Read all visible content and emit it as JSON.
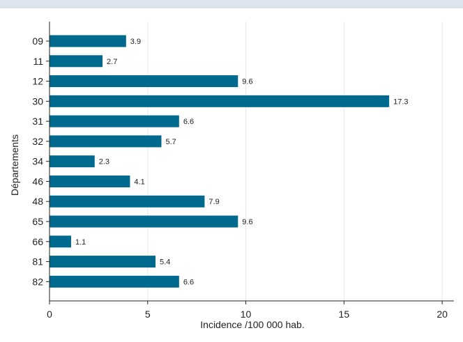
{
  "chart_data": {
    "type": "bar",
    "orientation": "horizontal",
    "categories": [
      "09",
      "11",
      "12",
      "30",
      "31",
      "32",
      "34",
      "46",
      "48",
      "65",
      "66",
      "81",
      "82"
    ],
    "values": [
      3.9,
      2.7,
      9.6,
      17.3,
      6.6,
      5.7,
      2.3,
      4.1,
      7.9,
      9.6,
      1.1,
      5.4,
      6.6
    ],
    "value_labels": [
      "3.9",
      "2.7",
      "9.6",
      "17.3",
      "6.6",
      "5.7",
      "2.3",
      "4.1",
      "7.9",
      "9.6",
      "1.1",
      "5.4",
      "6.6"
    ],
    "xlabel": "Incidence /100 000 hab.",
    "ylabel": "Départements",
    "xlim": [
      0,
      20.6
    ],
    "xticks": [
      0,
      5,
      10,
      15,
      20
    ],
    "xtick_labels": [
      "0",
      "5",
      "10",
      "15",
      "20"
    ],
    "grid": "vertical",
    "colors": {
      "bar": "#006a8e",
      "grid": "#e8e8e8",
      "axis": "#222222",
      "header_strip": "#dde4ee"
    }
  }
}
